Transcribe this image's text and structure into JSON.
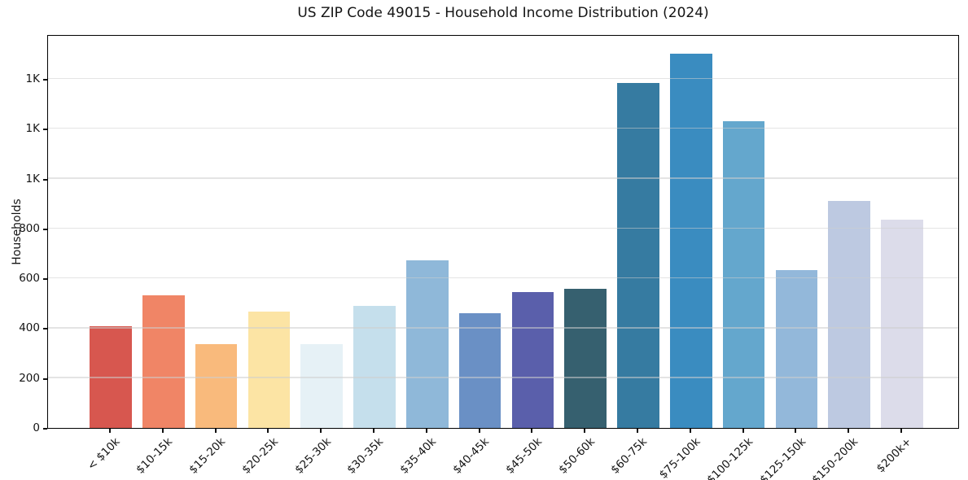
{
  "chart_data": {
    "type": "bar",
    "title": "US ZIP Code 49015 - Household Income Distribution (2024)",
    "xlabel": "",
    "ylabel": "Households",
    "categories": [
      "< $10k",
      "$10-15k",
      "$15-20k",
      "$20-25k",
      "$25-30k",
      "$30-35k",
      "$35-40k",
      "$40-45k",
      "$45-50k",
      "$50-60k",
      "$60-75k",
      "$75-100k",
      "$100-125k",
      "$125-150k",
      "$150-200k",
      "$200k+"
    ],
    "values": [
      408,
      531,
      337,
      466,
      336,
      489,
      673,
      460,
      546,
      557,
      1385,
      1502,
      1231,
      635,
      911,
      837
    ],
    "bar_colors": [
      "#d7574f",
      "#f08566",
      "#f9ba7c",
      "#fce4a4",
      "#e6f1f6",
      "#c5dfec",
      "#8fb8d9",
      "#6a90c5",
      "#5a5fab",
      "#36606f",
      "#367ba1",
      "#3a8cc0",
      "#64a7cd",
      "#93b8da",
      "#bdc9e1",
      "#dcdcea"
    ],
    "ylim": [
      0,
      1580
    ],
    "yticks": [
      {
        "v": 0,
        "label": "0"
      },
      {
        "v": 200,
        "label": "200"
      },
      {
        "v": 400,
        "label": "400"
      },
      {
        "v": 600,
        "label": "600"
      },
      {
        "v": 800,
        "label": "800"
      },
      {
        "v": 1000,
        "label": "1K"
      },
      {
        "v": 1200,
        "label": "1K"
      },
      {
        "v": 1400,
        "label": "1K"
      }
    ],
    "grid": "horizontal",
    "legend": "none",
    "spine_color": "#000000",
    "background": "#ffffff"
  }
}
